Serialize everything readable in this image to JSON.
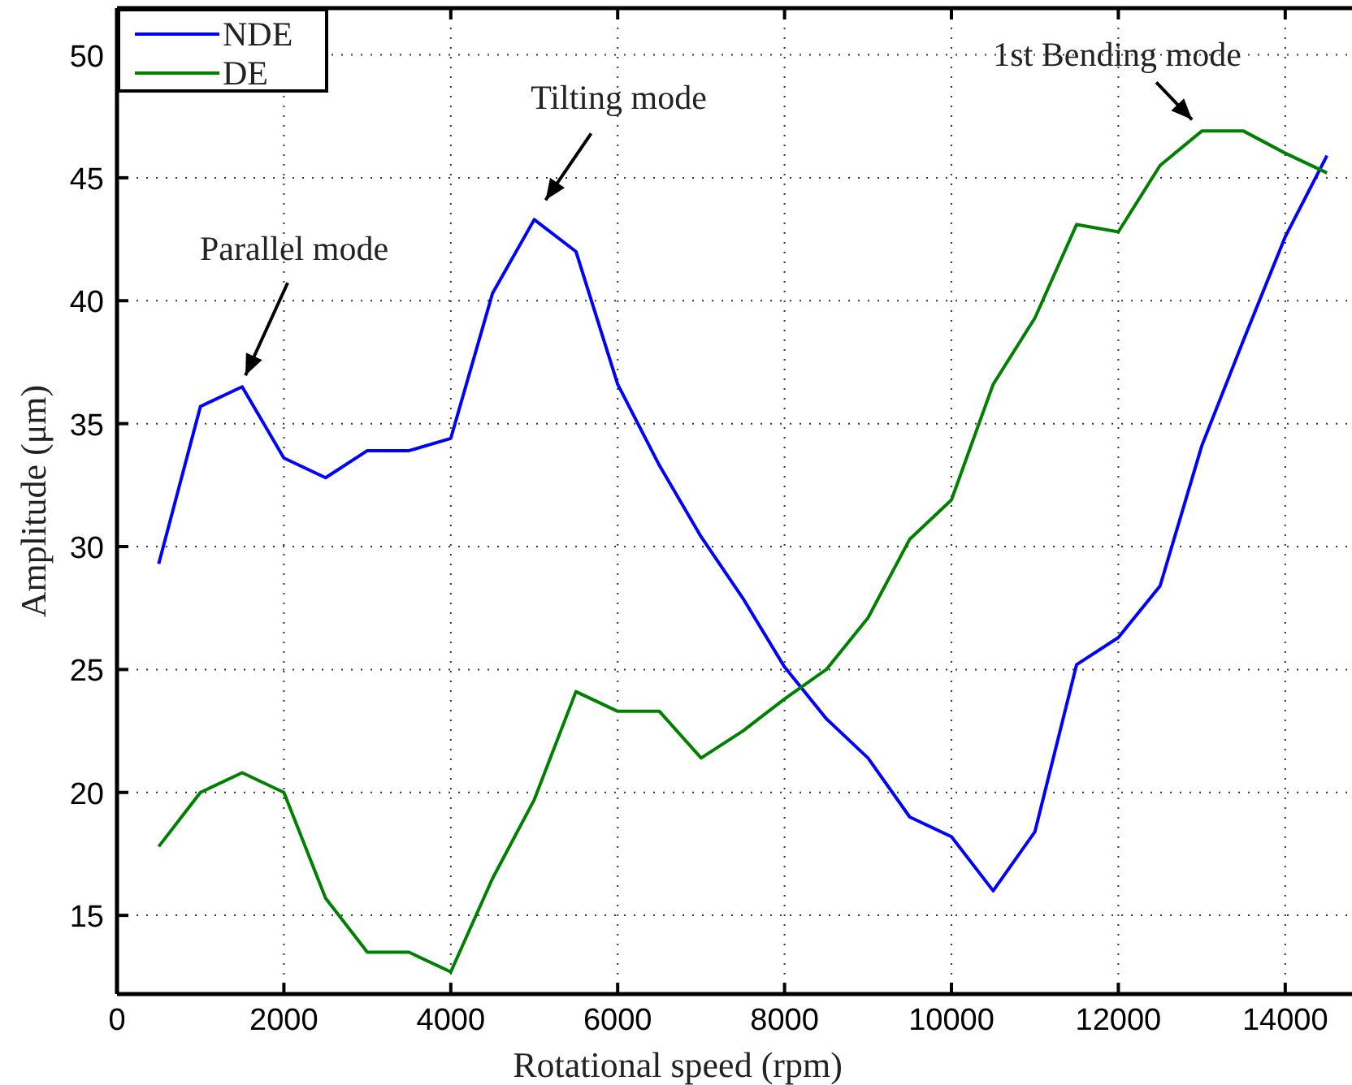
{
  "chart_data": {
    "type": "line",
    "xlabel": "Rotational speed (rpm)",
    "ylabel": "Amplitude (μm)",
    "x": [
      500,
      1000,
      1500,
      2000,
      2500,
      3000,
      3500,
      4000,
      4500,
      5000,
      5500,
      6000,
      6500,
      7000,
      7500,
      8000,
      8500,
      9000,
      9500,
      10000,
      10500,
      11000,
      11500,
      12000,
      12500,
      13000,
      13500,
      14000,
      14500
    ],
    "series": [
      {
        "name": "NDE",
        "color": "#0000ff",
        "values": [
          29.3,
          35.7,
          36.5,
          33.6,
          32.8,
          33.9,
          33.9,
          34.4,
          40.3,
          43.3,
          42.0,
          36.6,
          33.3,
          30.4,
          27.9,
          25.1,
          23.0,
          21.4,
          19.0,
          18.2,
          16.0,
          18.4,
          25.2,
          26.3,
          28.4,
          34.1,
          38.4,
          42.6,
          45.9
        ]
      },
      {
        "name": "DE",
        "color": "#008000",
        "values": [
          17.8,
          20.0,
          20.8,
          20.0,
          15.7,
          13.5,
          13.5,
          12.7,
          16.5,
          19.7,
          24.1,
          23.3,
          23.3,
          21.4,
          22.5,
          23.8,
          25.0,
          27.1,
          30.3,
          31.9,
          36.6,
          39.3,
          43.1,
          42.8,
          45.5,
          46.9,
          46.9,
          46.0,
          45.2
        ]
      }
    ],
    "xlim": [
      0,
      14800
    ],
    "xticks": [
      0,
      2000,
      4000,
      6000,
      8000,
      10000,
      12000,
      14000
    ],
    "ylim": [
      11.8,
      51.9
    ],
    "yticks": [
      15,
      20,
      25,
      30,
      35,
      40,
      45,
      50
    ],
    "grid": true,
    "legend": "top left",
    "annotations": [
      {
        "text": "Parallel mode",
        "x": 1500,
        "y": 36.5
      },
      {
        "text": "Tilting mode",
        "x": 5000,
        "y": 43.3
      },
      {
        "text": "1st Bending mode",
        "x": 13000,
        "y": 46.9
      }
    ]
  }
}
